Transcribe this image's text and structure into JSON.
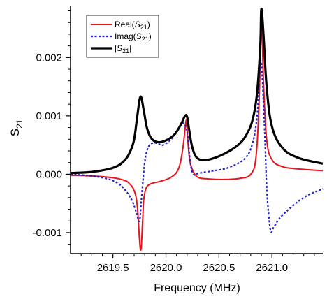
{
  "chart_data": {
    "type": "line",
    "xlabel": "Frequency (MHz)",
    "ylabel": {
      "main": "S",
      "sub": "21"
    },
    "xlim": [
      2619.1,
      2621.48
    ],
    "ylim": [
      -0.00136,
      0.00289
    ],
    "x_ticks": [
      {
        "value": 2619.5,
        "label": "2619.5"
      },
      {
        "value": 2620.0,
        "label": "2620.0"
      },
      {
        "value": 2620.5,
        "label": "2620.5"
      },
      {
        "value": 2621.0,
        "label": "2621.0"
      }
    ],
    "y_ticks": [
      {
        "value": -0.001,
        "label": "-0.001"
      },
      {
        "value": 0.0,
        "label": "0.000"
      },
      {
        "value": 0.001,
        "label": "0.001"
      },
      {
        "value": 0.002,
        "label": "0.002"
      }
    ],
    "legend_position": "top-left",
    "series": [
      {
        "name": "Real(S21)",
        "legend": {
          "pre": "Real(",
          "main": "S",
          "sub": "21",
          "post": ")"
        },
        "color": "#e8141b",
        "dash": "solid",
        "x": [
          2619.1,
          2619.3,
          2619.5,
          2619.6,
          2619.65,
          2619.7,
          2619.73,
          2619.76,
          2619.78,
          2619.79,
          2619.81,
          2619.84,
          2619.88,
          2619.95,
          2620.05,
          2620.12,
          2620.16,
          2620.19,
          2620.2,
          2620.22,
          2620.25,
          2620.3,
          2620.4,
          2620.55,
          2620.7,
          2620.8,
          2620.85,
          2620.88,
          2620.9,
          2620.92,
          2620.95,
          2621.0,
          2621.1,
          2621.25,
          2621.48
        ],
        "values": [
          -2e-05,
          -3e-05,
          -6e-05,
          -0.0001,
          -0.00015,
          -0.00028,
          -0.00055,
          -0.0013,
          -0.0008,
          -0.00045,
          -0.00025,
          -0.00018,
          -0.00015,
          -0.00012,
          -5e-05,
          0.0001,
          0.00045,
          0.00092,
          0.00075,
          0.0003,
          8e-05,
          -5e-05,
          -8e-05,
          -9e-05,
          -7e-05,
          0.0,
          0.0003,
          0.0013,
          0.0028,
          0.0016,
          0.0006,
          0.00025,
          0.00013,
          9e-05,
          6e-05
        ]
      },
      {
        "name": "Imag(S21)",
        "legend": {
          "pre": "Imag(",
          "main": "S",
          "sub": "21",
          "post": ")"
        },
        "color": "#2222cc",
        "dash": "dotted",
        "x": [
          2619.1,
          2619.3,
          2619.45,
          2619.55,
          2619.62,
          2619.68,
          2619.72,
          2619.75,
          2619.77,
          2619.8,
          2619.83,
          2619.87,
          2619.92,
          2619.97,
          2620.05,
          2620.12,
          2620.16,
          2620.2,
          2620.23,
          2620.26,
          2620.3,
          2620.35,
          2620.45,
          2620.6,
          2620.75,
          2620.82,
          2620.86,
          2620.88,
          2620.9,
          2620.93,
          2620.95,
          2620.97,
          2620.99,
          2621.02,
          2621.1,
          2621.3,
          2621.48
        ],
        "values": [
          0.0,
          -3e-05,
          -8e-05,
          -0.00016,
          -0.00028,
          -0.00045,
          -0.00065,
          -0.0008,
          -0.0004,
          0.0002,
          0.00045,
          0.00053,
          0.00053,
          0.0005,
          0.0006,
          0.00078,
          0.00088,
          0.00072,
          0.0002,
          0.0,
          1e-05,
          3e-05,
          6e-05,
          0.00012,
          0.00028,
          0.00055,
          0.001,
          0.0016,
          0.0019,
          0.0008,
          -0.0002,
          -0.0007,
          -0.00098,
          -0.0009,
          -0.0007,
          -0.0004,
          -0.00025
        ]
      },
      {
        "name": "|S21|",
        "legend": {
          "pre": "|",
          "main": "S",
          "sub": "21",
          "post": "|"
        },
        "color": "#000000",
        "dash": "solid",
        "x": [
          2619.1,
          2619.3,
          2619.5,
          2619.6,
          2619.66,
          2619.7,
          2619.73,
          2619.76,
          2619.79,
          2619.82,
          2619.86,
          2619.92,
          2620.0,
          2620.08,
          2620.14,
          2620.18,
          2620.2,
          2620.22,
          2620.25,
          2620.3,
          2620.4,
          2620.55,
          2620.68,
          2620.76,
          2620.82,
          2620.86,
          2620.89,
          2620.9,
          2620.92,
          2620.95,
          2621.0,
          2621.1,
          2621.25,
          2621.48
        ],
        "values": [
          2e-05,
          4e-05,
          0.00011,
          0.00022,
          0.00038,
          0.0006,
          0.001,
          0.00133,
          0.0011,
          0.0008,
          0.00062,
          0.00055,
          0.00058,
          0.00068,
          0.00085,
          0.001,
          0.00098,
          0.00075,
          0.00045,
          0.00027,
          0.00025,
          0.00035,
          0.0005,
          0.00068,
          0.00095,
          0.0014,
          0.0022,
          0.00283,
          0.0024,
          0.0015,
          0.00082,
          0.00045,
          0.00028,
          0.00018
        ]
      }
    ]
  }
}
